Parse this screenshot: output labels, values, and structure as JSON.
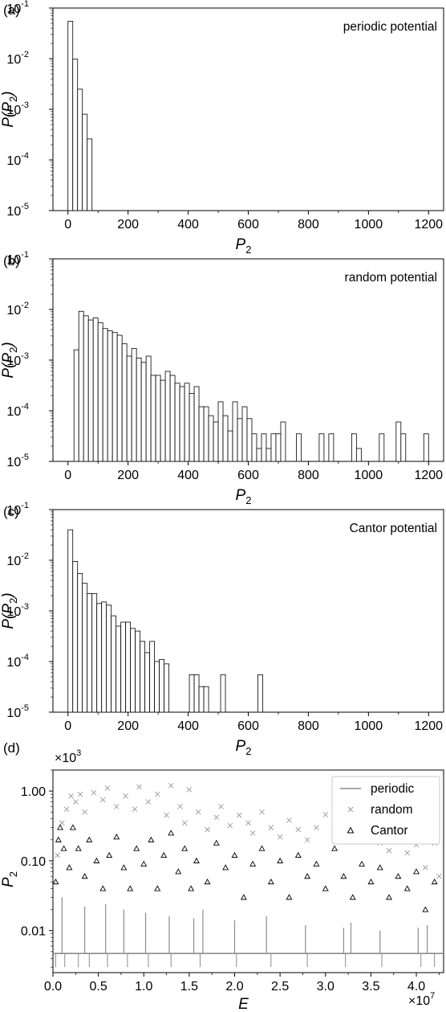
{
  "chart_data": [
    {
      "type": "bar",
      "panel_label": "(a)",
      "annotation": "periodic potential",
      "xlabel": "P",
      "xlabel_sub": "2",
      "ylabel": "P(P",
      "ylabel_sub": "2",
      "ylabel_tail": ")",
      "xlim": [
        -50,
        1250
      ],
      "ylim": [
        1e-05,
        0.1
      ],
      "yscale": "log",
      "xticks": [
        "0",
        "200",
        "400",
        "600",
        "800",
        "1000",
        "1200"
      ],
      "yticks": [
        {
          "base": "10",
          "exp": "-5"
        },
        {
          "base": "10",
          "exp": "-4"
        },
        {
          "base": "10",
          "exp": "-3"
        },
        {
          "base": "10",
          "exp": "-2"
        },
        {
          "base": "10",
          "exp": "-1"
        }
      ],
      "bin_width": 16,
      "bins": [
        [
          0,
          0.055
        ],
        [
          16,
          0.0098
        ],
        [
          32,
          0.0025
        ],
        [
          48,
          0.0008
        ],
        [
          64,
          0.00026
        ]
      ]
    },
    {
      "type": "bar",
      "panel_label": "(b)",
      "annotation": "random potential",
      "xlabel": "P",
      "xlabel_sub": "2",
      "ylabel": "P(P",
      "ylabel_sub": "2",
      "ylabel_tail": ")",
      "xlim": [
        -50,
        1250
      ],
      "ylim": [
        1e-05,
        0.1
      ],
      "yscale": "log",
      "xticks": [
        "0",
        "200",
        "400",
        "600",
        "800",
        "1000",
        "1200"
      ],
      "yticks": [
        {
          "base": "10",
          "exp": "-5"
        },
        {
          "base": "10",
          "exp": "-4"
        },
        {
          "base": "10",
          "exp": "-3"
        },
        {
          "base": "10",
          "exp": "-2"
        },
        {
          "base": "10",
          "exp": "-1"
        }
      ],
      "bin_width": 16,
      "bins": [
        [
          20,
          0.0016
        ],
        [
          36,
          0.0092
        ],
        [
          52,
          0.0075
        ],
        [
          68,
          0.0062
        ],
        [
          84,
          0.0068
        ],
        [
          100,
          0.0055
        ],
        [
          116,
          0.0042
        ],
        [
          132,
          0.0038
        ],
        [
          148,
          0.0035
        ],
        [
          164,
          0.0031
        ],
        [
          180,
          0.0021
        ],
        [
          196,
          0.0012
        ],
        [
          212,
          0.0017
        ],
        [
          228,
          0.0011
        ],
        [
          244,
          0.0009
        ],
        [
          260,
          0.0012
        ],
        [
          276,
          0.0005
        ],
        [
          292,
          0.0005
        ],
        [
          308,
          0.0004
        ],
        [
          324,
          0.0006
        ],
        [
          340,
          0.0005
        ],
        [
          356,
          0.00035
        ],
        [
          372,
          0.0003
        ],
        [
          388,
          0.00035
        ],
        [
          404,
          0.00022
        ],
        [
          420,
          0.0003
        ],
        [
          436,
          0.00012
        ],
        [
          452,
          0.00012
        ],
        [
          468,
          8e-05
        ],
        [
          484,
          6e-05
        ],
        [
          500,
          0.00015
        ],
        [
          516,
          8e-05
        ],
        [
          532,
          4e-05
        ],
        [
          548,
          0.00015
        ],
        [
          564,
          7e-05
        ],
        [
          580,
          0.00012
        ],
        [
          596,
          7e-05
        ],
        [
          612,
          3.5e-05
        ],
        [
          628,
          1.8e-05
        ],
        [
          644,
          3.5e-05
        ],
        [
          660,
          1.8e-05
        ],
        [
          676,
          3.5e-05
        ],
        [
          692,
          3.5e-05
        ],
        [
          708,
          6e-05
        ],
        [
          760,
          3.5e-05
        ],
        [
          836,
          3.5e-05
        ],
        [
          868,
          3.5e-05
        ],
        [
          944,
          3.5e-05
        ],
        [
          960,
          1.8e-05
        ],
        [
          1036,
          3.5e-05
        ],
        [
          1092,
          6e-05
        ],
        [
          1108,
          3.5e-05
        ],
        [
          1184,
          3.5e-05
        ]
      ]
    },
    {
      "type": "bar",
      "panel_label": "(c)",
      "annotation": "Cantor potential",
      "xlabel": "P",
      "xlabel_sub": "2",
      "ylabel": "P(P",
      "ylabel_sub": "2",
      "ylabel_tail": ")",
      "xlim": [
        -50,
        1250
      ],
      "ylim": [
        1e-05,
        0.1
      ],
      "yscale": "log",
      "xticks": [
        "0",
        "200",
        "400",
        "600",
        "800",
        "1000",
        "1200"
      ],
      "yticks": [
        {
          "base": "10",
          "exp": "-5"
        },
        {
          "base": "10",
          "exp": "-4"
        },
        {
          "base": "10",
          "exp": "-3"
        },
        {
          "base": "10",
          "exp": "-2"
        },
        {
          "base": "10",
          "exp": "-1"
        }
      ],
      "bin_width": 16,
      "bins": [
        [
          0,
          0.04
        ],
        [
          16,
          0.0095
        ],
        [
          32,
          0.0055
        ],
        [
          48,
          0.0035
        ],
        [
          64,
          0.0022
        ],
        [
          80,
          0.0022
        ],
        [
          96,
          0.0014
        ],
        [
          112,
          0.0015
        ],
        [
          128,
          0.0013
        ],
        [
          144,
          0.0008
        ],
        [
          160,
          0.0005
        ],
        [
          176,
          0.0006
        ],
        [
          192,
          0.0006
        ],
        [
          208,
          0.00045
        ],
        [
          224,
          0.0004
        ],
        [
          240,
          0.00025
        ],
        [
          256,
          0.00015
        ],
        [
          272,
          0.00025
        ],
        [
          288,
          0.0001
        ],
        [
          304,
          0.00011
        ],
        [
          320,
          9e-05
        ],
        [
          404,
          5.5e-05
        ],
        [
          420,
          5.5e-05
        ],
        [
          436,
          3.2e-05
        ],
        [
          452,
          3.2e-05
        ],
        [
          508,
          5.5e-05
        ],
        [
          632,
          5.5e-05
        ]
      ]
    },
    {
      "type": "scatter",
      "panel_label": "(d)",
      "xlabel": "E",
      "ylabel": "P",
      "ylabel_sub": "2",
      "yscale": "log",
      "ylim": [
        0.0025,
        2.0
      ],
      "xlim": [
        0,
        4.3
      ],
      "x_multiplier": {
        "base": "×10",
        "exp": "7"
      },
      "y_multiplier": {
        "base": "×10",
        "exp": "3"
      },
      "xticks": [
        "0.0",
        "0.5",
        "1.0",
        "1.5",
        "2.0",
        "2.5",
        "3.0",
        "3.5",
        "4.0"
      ],
      "yticks": [
        {
          "label": "0.01",
          "value": 0.01
        },
        {
          "label": "0.10",
          "value": 0.1
        },
        {
          "label": "1.00",
          "value": 1.0
        }
      ],
      "legend_position": "top-right",
      "series": [
        {
          "name": "periodic",
          "marker": "line",
          "color": "#8c8c8c",
          "baseline": 0.0047,
          "dip_positions": [
            0.03,
            0.13,
            0.28,
            0.4,
            0.6,
            0.82,
            1.05,
            1.3,
            1.62,
            2.02,
            2.4,
            2.8,
            3.22,
            3.62,
            4.05,
            4.2
          ],
          "dip_floor": 0.003,
          "spike_positions": [
            0.1,
            0.35,
            0.58,
            0.78,
            1.02,
            1.28,
            1.55,
            1.65,
            2.0,
            2.35,
            2.78,
            3.2,
            3.28,
            3.6,
            4.02,
            4.12
          ],
          "spike_tops": [
            0.03,
            0.022,
            0.024,
            0.02,
            0.018,
            0.016,
            0.015,
            0.02,
            0.014,
            0.016,
            0.012,
            0.011,
            0.013,
            0.01,
            0.011,
            0.012
          ]
        },
        {
          "name": "random",
          "marker": "x",
          "color": "#999999",
          "points": [
            [
              0.05,
              0.12
            ],
            [
              0.1,
              0.35
            ],
            [
              0.15,
              0.55
            ],
            [
              0.2,
              0.85
            ],
            [
              0.25,
              0.7
            ],
            [
              0.3,
              0.9
            ],
            [
              0.35,
              0.5
            ],
            [
              0.45,
              0.95
            ],
            [
              0.55,
              0.75
            ],
            [
              0.6,
              1.1
            ],
            [
              0.7,
              0.6
            ],
            [
              0.8,
              0.85
            ],
            [
              0.9,
              0.55
            ],
            [
              0.95,
              1.15
            ],
            [
              1.05,
              0.7
            ],
            [
              1.15,
              0.9
            ],
            [
              1.25,
              0.45
            ],
            [
              1.3,
              1.2
            ],
            [
              1.4,
              0.6
            ],
            [
              1.45,
              0.35
            ],
            [
              1.5,
              1.05
            ],
            [
              1.6,
              0.5
            ],
            [
              1.7,
              0.28
            ],
            [
              1.8,
              0.42
            ],
            [
              1.85,
              0.6
            ],
            [
              1.95,
              0.32
            ],
            [
              2.05,
              0.45
            ],
            [
              2.15,
              0.35
            ],
            [
              2.2,
              0.25
            ],
            [
              2.3,
              0.5
            ],
            [
              2.4,
              0.3
            ],
            [
              2.5,
              0.22
            ],
            [
              2.6,
              0.38
            ],
            [
              2.7,
              0.28
            ],
            [
              2.8,
              0.2
            ],
            [
              2.9,
              0.3
            ],
            [
              3.0,
              0.46
            ],
            [
              3.1,
              0.24
            ],
            [
              3.25,
              0.32
            ],
            [
              3.35,
              0.19
            ],
            [
              3.5,
              0.26
            ],
            [
              3.6,
              0.18
            ],
            [
              3.7,
              0.14
            ],
            [
              3.8,
              0.22
            ],
            [
              3.9,
              0.13
            ],
            [
              4.0,
              0.17
            ],
            [
              4.1,
              0.08
            ],
            [
              4.2,
              0.18
            ],
            [
              4.25,
              0.06
            ]
          ]
        },
        {
          "name": "Cantor",
          "marker": "triangle",
          "color": "#000000",
          "points": [
            [
              0.03,
              0.05
            ],
            [
              0.06,
              0.2
            ],
            [
              0.08,
              0.3
            ],
            [
              0.12,
              0.15
            ],
            [
              0.18,
              0.08
            ],
            [
              0.22,
              0.3
            ],
            [
              0.28,
              0.15
            ],
            [
              0.35,
              0.06
            ],
            [
              0.4,
              0.2
            ],
            [
              0.48,
              0.1
            ],
            [
              0.55,
              0.04
            ],
            [
              0.62,
              0.12
            ],
            [
              0.7,
              0.22
            ],
            [
              0.78,
              0.08
            ],
            [
              0.85,
              0.04
            ],
            [
              0.92,
              0.15
            ],
            [
              1.0,
              0.09
            ],
            [
              1.08,
              0.2
            ],
            [
              1.15,
              0.04
            ],
            [
              1.22,
              0.12
            ],
            [
              1.3,
              0.25
            ],
            [
              1.38,
              0.07
            ],
            [
              1.45,
              0.15
            ],
            [
              1.52,
              0.04
            ],
            [
              1.58,
              0.1
            ],
            [
              1.7,
              0.05
            ],
            [
              1.8,
              0.18
            ],
            [
              1.9,
              0.08
            ],
            [
              2.0,
              0.12
            ],
            [
              2.1,
              0.03
            ],
            [
              2.2,
              0.09
            ],
            [
              2.3,
              0.15
            ],
            [
              2.4,
              0.05
            ],
            [
              2.5,
              0.1
            ],
            [
              2.6,
              0.03
            ],
            [
              2.7,
              0.12
            ],
            [
              2.8,
              0.06
            ],
            [
              2.9,
              0.09
            ],
            [
              3.0,
              0.04
            ],
            [
              3.1,
              0.15
            ],
            [
              3.2,
              0.06
            ],
            [
              3.3,
              0.03
            ],
            [
              3.4,
              0.09
            ],
            [
              3.5,
              0.05
            ],
            [
              3.6,
              0.08
            ],
            [
              3.7,
              0.03
            ],
            [
              3.8,
              0.06
            ],
            [
              3.9,
              0.04
            ],
            [
              4.0,
              0.07
            ],
            [
              4.1,
              0.02
            ],
            [
              4.2,
              0.05
            ]
          ]
        }
      ]
    }
  ]
}
